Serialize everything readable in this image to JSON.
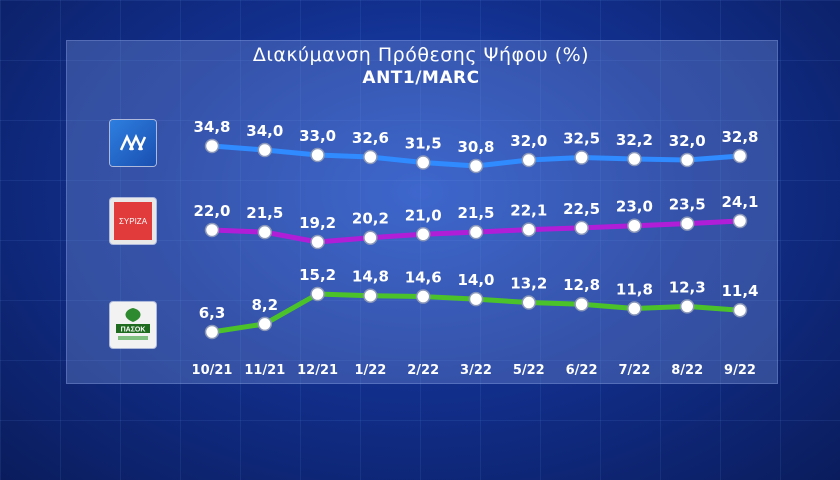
{
  "title": "Διακύμανση Πρόθεσης Ψήφου (%)",
  "subtitle": "ANT1/MARC",
  "logos": {
    "nd": "logo-nd-icon",
    "syriza": "logo-syriza-icon",
    "syriza_text": "ΣΥΡΙΖΑ",
    "pasok": "logo-pasok-icon",
    "pasok_text": "ΠΑΣΟΚ"
  },
  "chart_data": {
    "type": "line",
    "title": "Διακύμανση Πρόθεσης Ψήφου (%)",
    "subtitle": "ANT1/MARC",
    "categories": [
      "10/21",
      "11/21",
      "12/21",
      "1/22",
      "2/22",
      "3/22",
      "5/22",
      "6/22",
      "7/22",
      "8/22",
      "9/22"
    ],
    "series": [
      {
        "key": "nd",
        "color": "#2f8bff",
        "labels": [
          "34,8",
          "34,0",
          "33,0",
          "32,6",
          "31,5",
          "30,8",
          "32,0",
          "32,5",
          "32,2",
          "32,0",
          "32,8"
        ],
        "values": [
          34.8,
          34.0,
          33.0,
          32.6,
          31.5,
          30.8,
          32.0,
          32.5,
          32.2,
          32.0,
          32.8
        ]
      },
      {
        "key": "syriza",
        "color": "#b01ed8",
        "labels": [
          "22,0",
          "21,5",
          "19,2",
          "20,2",
          "21,0",
          "21,5",
          "22,1",
          "22,5",
          "23,0",
          "23,5",
          "24,1"
        ],
        "values": [
          22.0,
          21.5,
          19.2,
          20.2,
          21.0,
          21.5,
          22.1,
          22.5,
          23.0,
          23.5,
          24.1
        ]
      },
      {
        "key": "pasok",
        "color": "#4cc22a",
        "labels": [
          "6,3",
          "8,2",
          "15,2",
          "14,8",
          "14,6",
          "14,0",
          "13,2",
          "12,8",
          "11,8",
          "12,3",
          "11,4"
        ],
        "values": [
          6.3,
          8.2,
          15.2,
          14.8,
          14.6,
          14.0,
          13.2,
          12.8,
          11.8,
          12.3,
          11.4
        ]
      }
    ],
    "grid": false,
    "legend": "left-logos"
  }
}
